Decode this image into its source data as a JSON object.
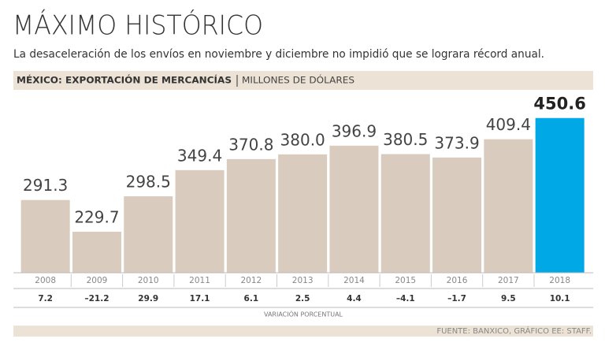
{
  "chart_data": {
    "type": "bar",
    "title": "MÁXIMO HISTÓRICO",
    "subtitle": "La desaceleración de los envíos en noviembre y diciembre no impidió que se lograra récord anual.",
    "header": "MÉXICO: EXPORTACIÓN DE MERCANCÍAS",
    "unit": "MILLONES DE DÓLARES",
    "categories": [
      "2008",
      "2009",
      "2010",
      "2011",
      "2012",
      "2013",
      "2014",
      "2015",
      "2016",
      "2017",
      "2018"
    ],
    "values": [
      291.3,
      229.7,
      298.5,
      349.4,
      370.8,
      380.0,
      396.9,
      380.5,
      373.9,
      409.4,
      450.6
    ],
    "value_labels": [
      "291.3",
      "229.7",
      "298.5",
      "349.4",
      "370.8",
      "380.0",
      "396.9",
      "380.5",
      "373.9",
      "409.4",
      "450.6"
    ],
    "colors": [
      "#d9cbbd",
      "#d9cbbd",
      "#d9cbbd",
      "#d9cbbd",
      "#d9cbbd",
      "#d9cbbd",
      "#d9cbbd",
      "#d9cbbd",
      "#d9cbbd",
      "#d9cbbd",
      "#00a9e6"
    ],
    "ylim": [
      150,
      460
    ],
    "variation": {
      "label": "VARIACIÓN PORCENTUAL",
      "values": [
        7.2,
        -21.2,
        29.9,
        17.1,
        6.1,
        2.5,
        4.4,
        -4.1,
        -1.7,
        9.5,
        10.1
      ],
      "value_labels": [
        "7.2",
        "–21.2",
        "29.9",
        "17.1",
        "6.1",
        "2.5",
        "4.4",
        "–4.1",
        "–1.7",
        "9.5",
        "10.1"
      ]
    },
    "source": "FUENTE: BANXICO, GRÁFICO EE: STAFF."
  }
}
